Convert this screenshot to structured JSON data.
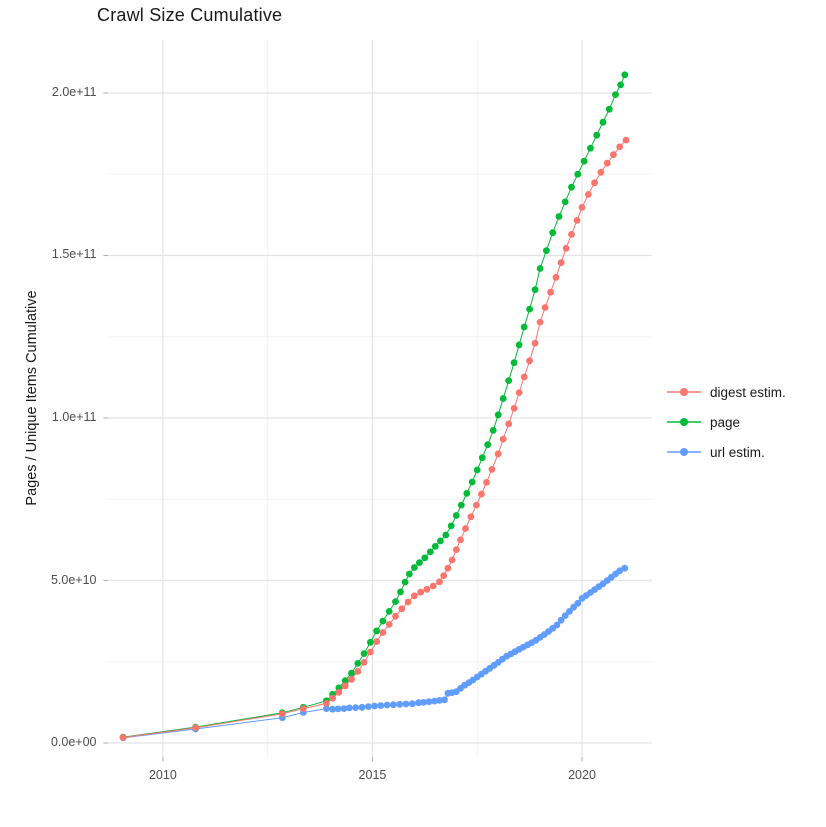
{
  "chart_data": {
    "type": "scatter",
    "title": "Crawl Size Cumulative",
    "xlabel": "",
    "ylabel": "Pages / Unique Items Cumulative",
    "values_unit": "items, stored as billions (1e9)",
    "grid": "on",
    "x_axis": {
      "range": [
        2008.69,
        2021.67
      ],
      "major_ticks": [
        {
          "value": 2010,
          "label": "2010"
        },
        {
          "value": 2015,
          "label": "2015"
        },
        {
          "value": 2020,
          "label": "2020"
        }
      ],
      "minor_gridlines": [
        2012.5,
        2017.5
      ]
    },
    "y_axis": {
      "range_billions": [
        -4.3,
        216.3
      ],
      "major_ticks": [
        {
          "value": 0,
          "label": "0.0e+00"
        },
        {
          "value": 50,
          "label": "5.0e+10"
        },
        {
          "value": 100,
          "label": "1.0e+11"
        },
        {
          "value": 150,
          "label": "1.5e+11"
        },
        {
          "value": 200,
          "label": "2.0e+11"
        }
      ],
      "minor_gridlines": [
        25,
        75,
        125,
        175
      ]
    },
    "legend": {
      "position": "right",
      "entries": [
        {
          "label": "digest estim.",
          "color": "#F8766D"
        },
        {
          "label": "page",
          "color": "#00BA38"
        },
        {
          "label": "url estim.",
          "color": "#619CFF"
        }
      ]
    },
    "series": [
      {
        "name": "url estim.",
        "color": "#619CFF",
        "points_year_billions": [
          [
            2009.05,
            1.6
          ],
          [
            2010.78,
            4.3
          ],
          [
            2012.85,
            7.8
          ],
          [
            2013.35,
            9.4
          ],
          [
            2013.9,
            10.6
          ],
          [
            2014.05,
            10.4
          ],
          [
            2014.18,
            10.5
          ],
          [
            2014.32,
            10.6
          ],
          [
            2014.45,
            10.8
          ],
          [
            2014.6,
            10.9
          ],
          [
            2014.75,
            11.0
          ],
          [
            2014.9,
            11.2
          ],
          [
            2015.05,
            11.4
          ],
          [
            2015.2,
            11.5
          ],
          [
            2015.35,
            11.7
          ],
          [
            2015.5,
            11.8
          ],
          [
            2015.65,
            11.9
          ],
          [
            2015.8,
            12.0
          ],
          [
            2015.95,
            12.1
          ],
          [
            2016.1,
            12.4
          ],
          [
            2016.22,
            12.5
          ],
          [
            2016.35,
            12.7
          ],
          [
            2016.48,
            12.9
          ],
          [
            2016.6,
            13.1
          ],
          [
            2016.72,
            13.3
          ],
          [
            2016.8,
            15.3
          ],
          [
            2016.9,
            15.5
          ],
          [
            2017.0,
            15.8
          ],
          [
            2017.1,
            16.8
          ],
          [
            2017.2,
            17.8
          ],
          [
            2017.3,
            18.6
          ],
          [
            2017.4,
            19.4
          ],
          [
            2017.5,
            20.3
          ],
          [
            2017.6,
            21.2
          ],
          [
            2017.7,
            22.1
          ],
          [
            2017.8,
            23.0
          ],
          [
            2017.9,
            23.9
          ],
          [
            2018.0,
            24.8
          ],
          [
            2018.1,
            25.8
          ],
          [
            2018.2,
            26.7
          ],
          [
            2018.3,
            27.4
          ],
          [
            2018.4,
            28.1
          ],
          [
            2018.5,
            28.8
          ],
          [
            2018.6,
            29.5
          ],
          [
            2018.7,
            30.2
          ],
          [
            2018.8,
            30.9
          ],
          [
            2018.9,
            31.6
          ],
          [
            2019.0,
            32.5
          ],
          [
            2019.1,
            33.4
          ],
          [
            2019.2,
            34.3
          ],
          [
            2019.3,
            35.3
          ],
          [
            2019.4,
            36.3
          ],
          [
            2019.5,
            37.8
          ],
          [
            2019.6,
            39.2
          ],
          [
            2019.7,
            40.5
          ],
          [
            2019.8,
            41.8
          ],
          [
            2019.9,
            43.0
          ],
          [
            2020.0,
            44.5
          ],
          [
            2020.1,
            45.4
          ],
          [
            2020.2,
            46.3
          ],
          [
            2020.3,
            47.2
          ],
          [
            2020.4,
            48.1
          ],
          [
            2020.5,
            49.0
          ],
          [
            2020.6,
            50.0
          ],
          [
            2020.7,
            51.0
          ],
          [
            2020.8,
            52.0
          ],
          [
            2020.9,
            53.0
          ],
          [
            2021.02,
            53.8
          ]
        ]
      },
      {
        "name": "page",
        "color": "#00BA38",
        "points_year_billions": [
          [
            2009.05,
            1.8
          ],
          [
            2010.78,
            4.9
          ],
          [
            2012.85,
            9.3
          ],
          [
            2013.35,
            11.0
          ],
          [
            2013.9,
            13.0
          ],
          [
            2014.05,
            15.0
          ],
          [
            2014.2,
            17.0
          ],
          [
            2014.35,
            19.2
          ],
          [
            2014.5,
            21.5
          ],
          [
            2014.65,
            24.5
          ],
          [
            2014.8,
            27.5
          ],
          [
            2014.95,
            31.0
          ],
          [
            2015.1,
            34.5
          ],
          [
            2015.25,
            37.5
          ],
          [
            2015.4,
            40.5
          ],
          [
            2015.55,
            43.5
          ],
          [
            2015.67,
            46.5
          ],
          [
            2015.78,
            49.5
          ],
          [
            2015.88,
            52.0
          ],
          [
            2016.0,
            54.0
          ],
          [
            2016.12,
            55.5
          ],
          [
            2016.25,
            57.0
          ],
          [
            2016.38,
            58.8
          ],
          [
            2016.5,
            60.5
          ],
          [
            2016.62,
            62.2
          ],
          [
            2016.75,
            64.0
          ],
          [
            2016.88,
            66.8
          ],
          [
            2017.0,
            70.0
          ],
          [
            2017.12,
            73.2
          ],
          [
            2017.25,
            76.8
          ],
          [
            2017.38,
            80.3
          ],
          [
            2017.5,
            84.0
          ],
          [
            2017.62,
            87.8
          ],
          [
            2017.75,
            91.8
          ],
          [
            2017.88,
            96.2
          ],
          [
            2018.0,
            101.0
          ],
          [
            2018.12,
            106.0
          ],
          [
            2018.25,
            111.5
          ],
          [
            2018.38,
            117.0
          ],
          [
            2018.5,
            122.5
          ],
          [
            2018.62,
            128.0
          ],
          [
            2018.75,
            133.5
          ],
          [
            2018.88,
            139.5
          ],
          [
            2019.0,
            146.0
          ],
          [
            2019.15,
            151.5
          ],
          [
            2019.3,
            157.0
          ],
          [
            2019.45,
            162.0
          ],
          [
            2019.6,
            166.5
          ],
          [
            2019.75,
            171.0
          ],
          [
            2019.9,
            175.0
          ],
          [
            2020.05,
            179.0
          ],
          [
            2020.2,
            183.0
          ],
          [
            2020.35,
            187.0
          ],
          [
            2020.5,
            191.0
          ],
          [
            2020.65,
            195.0
          ],
          [
            2020.8,
            199.5
          ],
          [
            2020.92,
            202.5
          ],
          [
            2021.02,
            205.6
          ]
        ]
      },
      {
        "name": "digest estim.",
        "color": "#F8766D",
        "points_year_billions": [
          [
            2009.05,
            1.7
          ],
          [
            2010.78,
            4.7
          ],
          [
            2012.85,
            9.0
          ],
          [
            2013.35,
            10.6
          ],
          [
            2013.9,
            12.2
          ],
          [
            2014.05,
            13.8
          ],
          [
            2014.2,
            15.6
          ],
          [
            2014.35,
            17.6
          ],
          [
            2014.5,
            19.6
          ],
          [
            2014.65,
            22.0
          ],
          [
            2014.8,
            24.8
          ],
          [
            2014.95,
            28.0
          ],
          [
            2015.1,
            31.2
          ],
          [
            2015.25,
            34.0
          ],
          [
            2015.4,
            36.5
          ],
          [
            2015.55,
            39.0
          ],
          [
            2015.7,
            41.3
          ],
          [
            2015.85,
            43.4
          ],
          [
            2016.0,
            45.3
          ],
          [
            2016.15,
            46.4
          ],
          [
            2016.3,
            47.3
          ],
          [
            2016.45,
            48.3
          ],
          [
            2016.6,
            49.6
          ],
          [
            2016.7,
            51.5
          ],
          [
            2016.8,
            53.8
          ],
          [
            2016.9,
            56.3
          ],
          [
            2017.0,
            59.5
          ],
          [
            2017.1,
            62.5
          ],
          [
            2017.22,
            66.0
          ],
          [
            2017.35,
            69.6
          ],
          [
            2017.48,
            73.2
          ],
          [
            2017.6,
            76.6
          ],
          [
            2017.72,
            80.2
          ],
          [
            2017.85,
            84.2
          ],
          [
            2018.0,
            89.0
          ],
          [
            2018.12,
            93.5
          ],
          [
            2018.25,
            98.2
          ],
          [
            2018.38,
            103.0
          ],
          [
            2018.5,
            107.8
          ],
          [
            2018.62,
            112.6
          ],
          [
            2018.75,
            117.6
          ],
          [
            2018.88,
            123.0
          ],
          [
            2019.0,
            129.5
          ],
          [
            2019.12,
            134.0
          ],
          [
            2019.25,
            138.7
          ],
          [
            2019.38,
            143.3
          ],
          [
            2019.5,
            147.8
          ],
          [
            2019.62,
            152.2
          ],
          [
            2019.75,
            156.5
          ],
          [
            2019.88,
            160.8
          ],
          [
            2020.0,
            164.8
          ],
          [
            2020.15,
            168.8
          ],
          [
            2020.3,
            172.4
          ],
          [
            2020.45,
            175.6
          ],
          [
            2020.6,
            178.4
          ],
          [
            2020.75,
            181.0
          ],
          [
            2020.9,
            183.4
          ],
          [
            2021.05,
            185.5
          ]
        ]
      }
    ]
  }
}
